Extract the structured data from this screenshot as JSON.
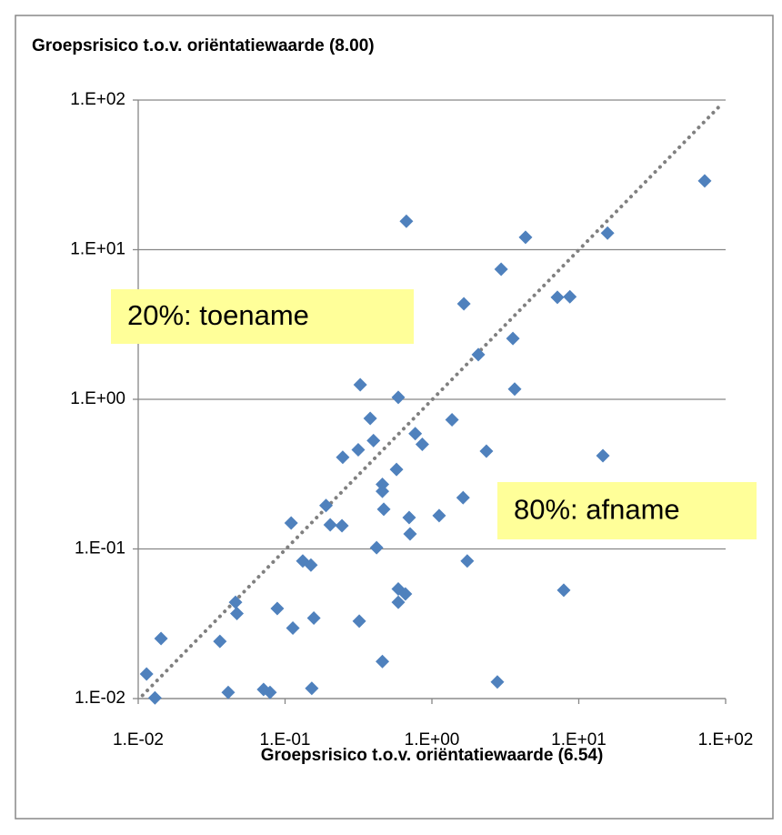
{
  "chart_data": {
    "type": "scatter",
    "title": "Groepsrisico t.o.v. oriëntatiewaarde (8.00)",
    "x_label": "Groepsrisico t.o.v. oriëntatiewaarde (6.54)",
    "log_x": true,
    "log_y": true,
    "grid": true,
    "xlim": [
      0.01,
      100
    ],
    "ylim": [
      0.01,
      100
    ],
    "xticks": [
      {
        "value": 0.01,
        "label": "1.E-02"
      },
      {
        "value": 0.1,
        "label": "1.E-01"
      },
      {
        "value": 1,
        "label": "1.E+00"
      },
      {
        "value": 10,
        "label": "1.E+01"
      },
      {
        "value": 100,
        "label": "1.E+02"
      }
    ],
    "yticks": [
      {
        "value": 0.01,
        "label": "1.E-02"
      },
      {
        "value": 0.1,
        "label": "1.E-01"
      },
      {
        "value": 1,
        "label": "1.E+00"
      },
      {
        "value": 10,
        "label": "1.E+01"
      },
      {
        "value": 100,
        "label": "1.E+02"
      }
    ],
    "series": [
      {
        "color": "#4f81bd",
        "x": [
          72,
          0.67,
          4.34,
          15.7,
          2.96,
          1.65,
          7.15,
          8.7,
          3.56,
          2.07,
          3.66,
          0.325,
          0.59,
          1.37,
          0.38,
          0.77,
          0.86,
          0.4,
          0.315,
          0.247,
          2.35,
          14.6,
          0.574,
          0.46,
          0.46,
          1.63,
          0.19,
          0.47,
          0.7,
          1.12,
          0.11,
          0.203,
          0.244,
          0.71,
          0.42,
          0.132,
          0.15,
          1.74,
          0.59,
          0.66,
          0.59,
          7.9,
          0.046,
          0.047,
          0.0885,
          0.157,
          0.113,
          0.32,
          0.0143,
          0.036,
          0.46,
          2.79,
          0.0114,
          0.013,
          0.041,
          0.0714,
          0.079,
          0.152
        ],
        "values": [
          28.8,
          15.5,
          12.1,
          12.9,
          7.4,
          4.35,
          4.8,
          4.85,
          2.55,
          1.99,
          1.17,
          1.25,
          1.03,
          0.73,
          0.745,
          0.59,
          0.5,
          0.53,
          0.46,
          0.41,
          0.45,
          0.42,
          0.34,
          0.27,
          0.243,
          0.22,
          0.195,
          0.184,
          0.162,
          0.167,
          0.149,
          0.145,
          0.143,
          0.126,
          0.102,
          0.083,
          0.078,
          0.083,
          0.054,
          0.05,
          0.044,
          0.053,
          0.044,
          0.037,
          0.04,
          0.0345,
          0.0296,
          0.0329,
          0.0252,
          0.0241,
          0.0177,
          0.0129,
          0.0146,
          0.0101,
          0.011,
          0.0115,
          0.011,
          0.0117
        ]
      }
    ],
    "trendline": {
      "x": [
        0.0107,
        93
      ],
      "y": [
        0.0105,
        93
      ],
      "color": "#808080"
    },
    "annotations": [
      {
        "text": "20%: toename",
        "color": "#ffff99"
      },
      {
        "text": "80%: afname",
        "color": "#ffff99"
      }
    ]
  }
}
